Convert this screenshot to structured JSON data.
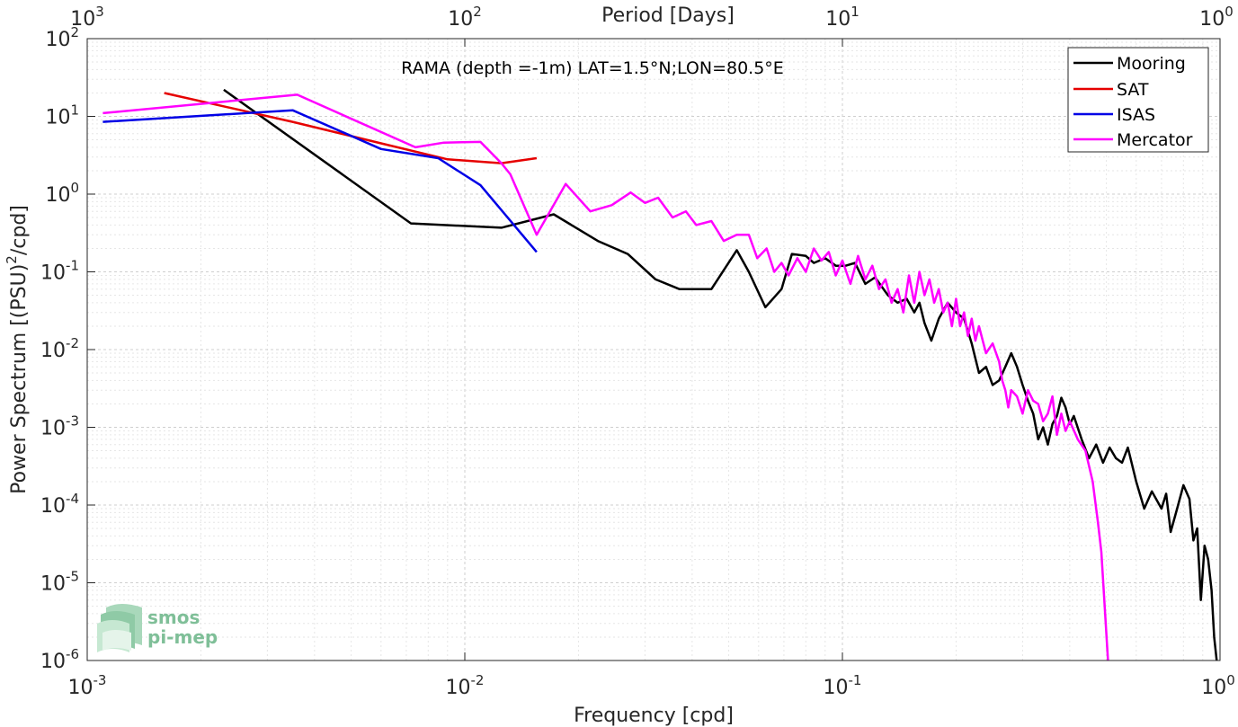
{
  "chart_data": {
    "type": "line",
    "title": "RAMA (depth =-1m) LAT=1.5°N;LON=80.5°E",
    "xlabel": "Frequency [cpd]",
    "ylabel_main": "Power Spectrum [(PSU)",
    "ylabel_sup": "2",
    "ylabel_tail": "/cpd]",
    "top_xlabel": "Period [Days]",
    "xscale": "log",
    "yscale": "log",
    "xlim": [
      0.001,
      1
    ],
    "ylim": [
      1e-06,
      100
    ],
    "grid": true,
    "legend_position": "top-right",
    "x_ticks": [
      {
        "value": 0.001,
        "base": "10",
        "exp": "-3"
      },
      {
        "value": 0.01,
        "base": "10",
        "exp": "-2"
      },
      {
        "value": 0.1,
        "base": "10",
        "exp": "-1"
      },
      {
        "value": 1,
        "base": "10",
        "exp": "0"
      }
    ],
    "y_ticks": [
      {
        "value": 1e-06,
        "base": "10",
        "exp": "-6"
      },
      {
        "value": 1e-05,
        "base": "10",
        "exp": "-5"
      },
      {
        "value": 0.0001,
        "base": "10",
        "exp": "-4"
      },
      {
        "value": 0.001,
        "base": "10",
        "exp": "-3"
      },
      {
        "value": 0.01,
        "base": "10",
        "exp": "-2"
      },
      {
        "value": 0.1,
        "base": "10",
        "exp": "-1"
      },
      {
        "value": 1,
        "base": "10",
        "exp": "0"
      },
      {
        "value": 10,
        "base": "10",
        "exp": "1"
      },
      {
        "value": 100,
        "base": "10",
        "exp": "2"
      }
    ],
    "top_ticks": [
      {
        "value": 0.001,
        "base": "10",
        "exp": "3"
      },
      {
        "value": 0.01,
        "base": "10",
        "exp": "2"
      },
      {
        "value": 0.1,
        "base": "10",
        "exp": "1"
      },
      {
        "value": 1,
        "base": "10",
        "exp": "0"
      }
    ],
    "series": [
      {
        "name": "Mooring",
        "color": "#000000",
        "points": [
          [
            0.0023,
            22
          ],
          [
            0.0072,
            0.42
          ],
          [
            0.0125,
            0.37
          ],
          [
            0.0172,
            0.55
          ],
          [
            0.0225,
            0.25
          ],
          [
            0.027,
            0.17
          ],
          [
            0.032,
            0.08
          ],
          [
            0.037,
            0.06
          ],
          [
            0.045,
            0.06
          ],
          [
            0.0525,
            0.19
          ],
          [
            0.0565,
            0.1
          ],
          [
            0.0625,
            0.035
          ],
          [
            0.069,
            0.06
          ],
          [
            0.0735,
            0.17
          ],
          [
            0.08,
            0.16
          ],
          [
            0.084,
            0.13
          ],
          [
            0.09,
            0.15
          ],
          [
            0.096,
            0.12
          ],
          [
            0.102,
            0.12
          ],
          [
            0.108,
            0.13
          ],
          [
            0.115,
            0.07
          ],
          [
            0.122,
            0.085
          ],
          [
            0.132,
            0.05
          ],
          [
            0.14,
            0.04
          ],
          [
            0.148,
            0.045
          ],
          [
            0.155,
            0.03
          ],
          [
            0.16,
            0.04
          ],
          [
            0.165,
            0.022
          ],
          [
            0.172,
            0.013
          ],
          [
            0.18,
            0.025
          ],
          [
            0.19,
            0.04
          ],
          [
            0.2,
            0.03
          ],
          [
            0.21,
            0.025
          ],
          [
            0.22,
            0.012
          ],
          [
            0.23,
            0.005
          ],
          [
            0.24,
            0.006
          ],
          [
            0.25,
            0.0035
          ],
          [
            0.26,
            0.004
          ],
          [
            0.27,
            0.006
          ],
          [
            0.28,
            0.009
          ],
          [
            0.29,
            0.006
          ],
          [
            0.3,
            0.0035
          ],
          [
            0.31,
            0.0022
          ],
          [
            0.32,
            0.0015
          ],
          [
            0.33,
            0.0007
          ],
          [
            0.34,
            0.001
          ],
          [
            0.35,
            0.0006
          ],
          [
            0.36,
            0.0011
          ],
          [
            0.37,
            0.0014
          ],
          [
            0.38,
            0.0024
          ],
          [
            0.39,
            0.0018
          ],
          [
            0.4,
            0.0011
          ],
          [
            0.41,
            0.0014
          ],
          [
            0.43,
            0.0007
          ],
          [
            0.45,
            0.0004
          ],
          [
            0.47,
            0.0006
          ],
          [
            0.49,
            0.00035
          ],
          [
            0.51,
            0.00055
          ],
          [
            0.53,
            0.0004
          ],
          [
            0.55,
            0.00035
          ],
          [
            0.57,
            0.00055
          ],
          [
            0.6,
            0.0002
          ],
          [
            0.63,
            9e-05
          ],
          [
            0.66,
            0.00015
          ],
          [
            0.7,
            9e-05
          ],
          [
            0.72,
            0.00014
          ],
          [
            0.74,
            4.5e-05
          ],
          [
            0.77,
            9e-05
          ],
          [
            0.8,
            0.00018
          ],
          [
            0.83,
            0.00012
          ],
          [
            0.85,
            3.5e-05
          ],
          [
            0.87,
            5e-05
          ],
          [
            0.89,
            6e-06
          ],
          [
            0.91,
            3e-05
          ],
          [
            0.93,
            2e-05
          ],
          [
            0.95,
            8e-06
          ],
          [
            0.965,
            2e-06
          ],
          [
            0.98,
            1e-06
          ]
        ]
      },
      {
        "name": "SAT",
        "color": "#e60000",
        "points": [
          [
            0.0016,
            20
          ],
          [
            0.0035,
            8.5
          ],
          [
            0.006,
            4.5
          ],
          [
            0.009,
            2.8
          ],
          [
            0.0125,
            2.5
          ],
          [
            0.0155,
            2.9
          ]
        ]
      },
      {
        "name": "ISAS",
        "color": "#0000e6",
        "points": [
          [
            0.0011,
            8.5
          ],
          [
            0.0035,
            12
          ],
          [
            0.006,
            3.8
          ],
          [
            0.0085,
            2.9
          ],
          [
            0.011,
            1.3
          ],
          [
            0.0155,
            0.18
          ]
        ]
      },
      {
        "name": "Mercator",
        "color": "#ff00ff",
        "points": [
          [
            0.0011,
            11
          ],
          [
            0.0036,
            19
          ],
          [
            0.0074,
            4
          ],
          [
            0.0088,
            4.6
          ],
          [
            0.011,
            4.7
          ],
          [
            0.0125,
            2.5
          ],
          [
            0.0132,
            1.8
          ],
          [
            0.0155,
            0.3
          ],
          [
            0.0185,
            1.35
          ],
          [
            0.0215,
            0.6
          ],
          [
            0.0245,
            0.72
          ],
          [
            0.0275,
            1.05
          ],
          [
            0.03,
            0.77
          ],
          [
            0.0325,
            0.9
          ],
          [
            0.0355,
            0.5
          ],
          [
            0.0385,
            0.6
          ],
          [
            0.041,
            0.4
          ],
          [
            0.045,
            0.45
          ],
          [
            0.0485,
            0.25
          ],
          [
            0.0525,
            0.3
          ],
          [
            0.0565,
            0.3
          ],
          [
            0.0595,
            0.15
          ],
          [
            0.063,
            0.2
          ],
          [
            0.066,
            0.1
          ],
          [
            0.069,
            0.13
          ],
          [
            0.072,
            0.09
          ],
          [
            0.076,
            0.15
          ],
          [
            0.08,
            0.1
          ],
          [
            0.084,
            0.2
          ],
          [
            0.088,
            0.14
          ],
          [
            0.092,
            0.18
          ],
          [
            0.096,
            0.09
          ],
          [
            0.1,
            0.14
          ],
          [
            0.105,
            0.07
          ],
          [
            0.11,
            0.16
          ],
          [
            0.115,
            0.08
          ],
          [
            0.12,
            0.12
          ],
          [
            0.125,
            0.06
          ],
          [
            0.13,
            0.08
          ],
          [
            0.135,
            0.04
          ],
          [
            0.14,
            0.06
          ],
          [
            0.145,
            0.03
          ],
          [
            0.15,
            0.09
          ],
          [
            0.155,
            0.04
          ],
          [
            0.16,
            0.1
          ],
          [
            0.165,
            0.05
          ],
          [
            0.17,
            0.08
          ],
          [
            0.175,
            0.04
          ],
          [
            0.18,
            0.06
          ],
          [
            0.185,
            0.03
          ],
          [
            0.19,
            0.04
          ],
          [
            0.195,
            0.02
          ],
          [
            0.2,
            0.045
          ],
          [
            0.205,
            0.02
          ],
          [
            0.21,
            0.03
          ],
          [
            0.215,
            0.015
          ],
          [
            0.22,
            0.025
          ],
          [
            0.225,
            0.013
          ],
          [
            0.23,
            0.02
          ],
          [
            0.24,
            0.009
          ],
          [
            0.25,
            0.012
          ],
          [
            0.26,
            0.007
          ],
          [
            0.265,
            0.004
          ],
          [
            0.27,
            0.003
          ],
          [
            0.275,
            0.0018
          ],
          [
            0.28,
            0.003
          ],
          [
            0.29,
            0.0025
          ],
          [
            0.3,
            0.0015
          ],
          [
            0.31,
            0.003
          ],
          [
            0.32,
            0.0022
          ],
          [
            0.33,
            0.002
          ],
          [
            0.34,
            0.0012
          ],
          [
            0.35,
            0.0015
          ],
          [
            0.36,
            0.0025
          ],
          [
            0.37,
            0.0008
          ],
          [
            0.38,
            0.0015
          ],
          [
            0.39,
            0.0009
          ],
          [
            0.4,
            0.0012
          ],
          [
            0.42,
            0.0007
          ],
          [
            0.44,
            0.0005
          ],
          [
            0.46,
            0.0002
          ],
          [
            0.475,
            6e-05
          ],
          [
            0.485,
            2.5e-05
          ],
          [
            0.495,
            5e-06
          ],
          [
            0.505,
            1e-06
          ]
        ]
      }
    ]
  },
  "logo": {
    "line1": "smos",
    "line2": "pi-mep"
  }
}
